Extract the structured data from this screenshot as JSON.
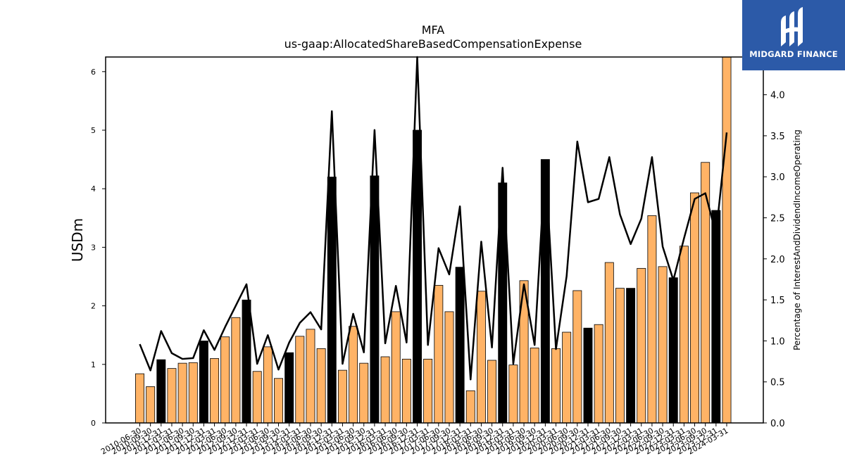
{
  "chart_data": {
    "type": "bar",
    "title": "MFA",
    "subtitle": "us-gaap:AllocatedShareBasedCompensationExpense",
    "ylabel": "USDm",
    "ylabel_right": "Percentage of InterestAndDividendIncomeOperating",
    "ylim": [
      0,
      6.25
    ],
    "ylim_right": [
      0,
      4.46
    ],
    "y_ticks": [
      0,
      1,
      2,
      3,
      4,
      5,
      6
    ],
    "y_ticks_right": [
      "0.0",
      "0.5",
      "1.0",
      "1.5",
      "2.0",
      "2.5",
      "3.0",
      "3.5",
      "4.0"
    ],
    "grid": false,
    "colors": {
      "q4_bar": "#000000",
      "other_bar": "#ffb366",
      "line": "#000000"
    },
    "categories": [
      "2010-06-30",
      "2010-09-30",
      "2010-12-31",
      "2011-03-31",
      "2011-06-30",
      "2011-09-30",
      "2011-12-31",
      "2012-03-31",
      "2012-06-30",
      "2012-09-30",
      "2012-12-31",
      "2013-03-31",
      "2013-06-30",
      "2013-09-30",
      "2013-12-31",
      "2014-03-31",
      "2014-06-30",
      "2014-09-30",
      "2014-12-31",
      "2015-03-31",
      "2015-06-30",
      "2015-09-30",
      "2015-12-31",
      "2016-03-31",
      "2016-06-30",
      "2016-09-30",
      "2016-12-31",
      "2017-03-31",
      "2017-06-30",
      "2017-09-30",
      "2017-12-31",
      "2018-03-31",
      "2018-06-30",
      "2018-09-30",
      "2018-12-31",
      "2019-03-31",
      "2019-06-30",
      "2019-09-30",
      "2019-12-31",
      "2020-03-31",
      "2020-06-30",
      "2020-09-30",
      "2020-12-31",
      "2021-03-31",
      "2021-06-30",
      "2021-09-30",
      "2021-12-31",
      "2022-03-31",
      "2022-06-30",
      "2022-09-30",
      "2022-12-31",
      "2023-03-31",
      "2023-06-30",
      "2023-09-30",
      "2023-12-31",
      "2024-03-31"
    ],
    "values": [
      0.84,
      0.62,
      1.08,
      0.93,
      1.02,
      1.03,
      1.4,
      1.1,
      1.47,
      1.8,
      2.1,
      0.88,
      1.3,
      0.76,
      1.2,
      1.48,
      1.6,
      1.27,
      4.2,
      0.9,
      1.65,
      1.02,
      4.22,
      1.13,
      1.9,
      1.09,
      5.0,
      1.09,
      2.35,
      1.9,
      2.66,
      0.55,
      2.25,
      1.07,
      4.1,
      0.99,
      2.43,
      1.28,
      4.5,
      1.27,
      1.55,
      2.26,
      1.62,
      1.68,
      2.74,
      2.3,
      2.3,
      2.64,
      3.54,
      2.67,
      2.48,
      3.02,
      3.93,
      4.45,
      3.63,
      6.25
    ],
    "highlight": [
      false,
      false,
      true,
      false,
      false,
      false,
      true,
      false,
      false,
      false,
      true,
      false,
      false,
      false,
      true,
      false,
      false,
      false,
      true,
      false,
      false,
      false,
      true,
      false,
      false,
      false,
      true,
      false,
      false,
      false,
      true,
      false,
      false,
      false,
      true,
      false,
      false,
      false,
      true,
      false,
      false,
      false,
      true,
      false,
      false,
      false,
      true,
      false,
      false,
      false,
      true,
      false,
      false,
      false,
      true,
      false
    ],
    "series": [
      {
        "axis": "right",
        "values": [
          0.96,
          0.64,
          1.12,
          0.85,
          0.78,
          0.79,
          1.13,
          0.89,
          1.17,
          1.43,
          1.69,
          0.72,
          1.07,
          0.65,
          0.98,
          1.22,
          1.35,
          1.14,
          3.8,
          0.72,
          1.33,
          0.86,
          3.57,
          0.97,
          1.67,
          0.98,
          4.46,
          0.95,
          2.13,
          1.81,
          2.64,
          0.53,
          2.21,
          0.92,
          3.11,
          0.72,
          1.69,
          0.95,
          3.19,
          0.9,
          1.79,
          3.43,
          2.69,
          2.73,
          3.24,
          2.54,
          2.18,
          2.49,
          3.24,
          2.15,
          1.74,
          2.25,
          2.73,
          2.8,
          2.3,
          3.54
        ]
      }
    ]
  },
  "logo": {
    "text": "MIDGARD FINANCE"
  }
}
